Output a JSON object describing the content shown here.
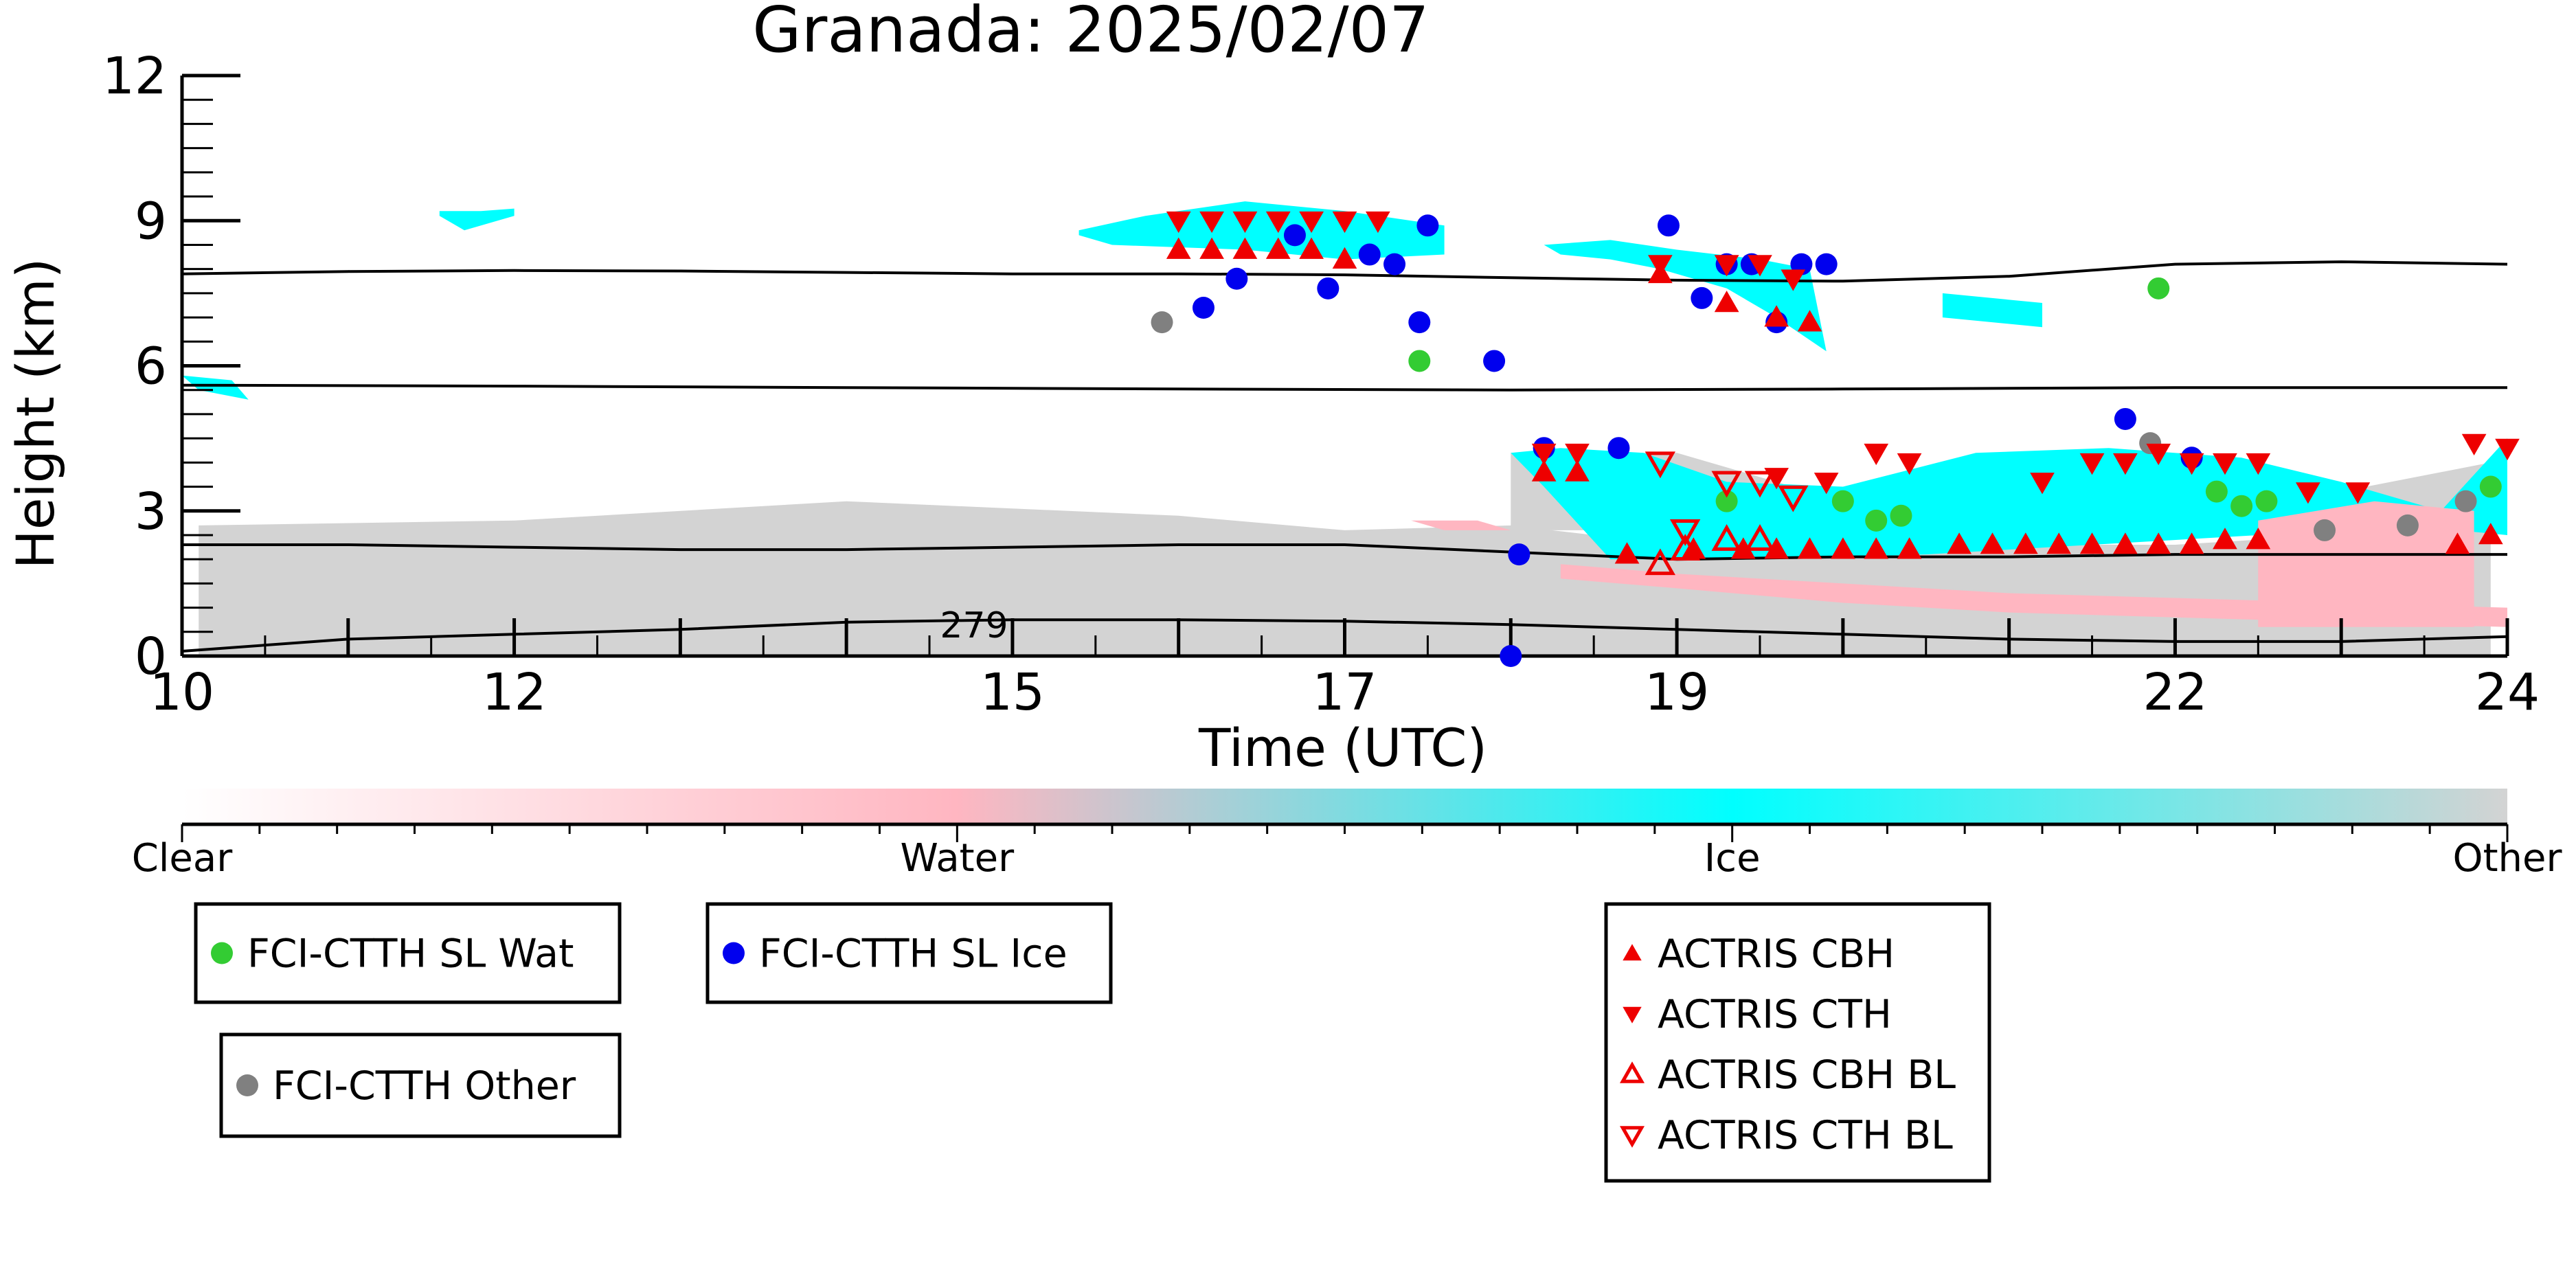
{
  "chart_data": {
    "type": "scatter",
    "title": "Granada: 2025/02/07",
    "xlabel": "Time (UTC)",
    "ylabel": "Height (km)",
    "xlim": [
      10,
      24
    ],
    "ylim": [
      0,
      12
    ],
    "xticks": [
      10,
      12,
      15,
      17,
      19,
      22,
      24
    ],
    "yticks": [
      0,
      3,
      6,
      9
    ],
    "ytick_top": 12,
    "colorbar": {
      "labels": [
        "Clear",
        "Water",
        "Ice",
        "Other"
      ],
      "colors": [
        "#ffffff",
        "#ffb6c1",
        "#00ffff",
        "#d3d3d3"
      ]
    },
    "contour_label": "279",
    "contour_lines": [
      {
        "x": [
          10,
          11,
          12,
          13,
          14,
          15,
          16,
          17,
          18,
          19,
          20,
          21,
          22,
          23,
          24
        ],
        "y": [
          7.9,
          7.95,
          7.97,
          7.96,
          7.93,
          7.9,
          7.9,
          7.88,
          7.82,
          7.77,
          7.75,
          7.85,
          8.1,
          8.15,
          8.1
        ]
      },
      {
        "x": [
          10,
          12,
          14,
          16,
          18,
          20,
          22,
          24
        ],
        "y": [
          5.6,
          5.58,
          5.55,
          5.52,
          5.5,
          5.52,
          5.55,
          5.55
        ]
      },
      {
        "x": [
          10,
          11,
          12,
          13,
          14,
          15,
          16,
          17,
          18,
          19,
          20,
          21,
          22,
          23,
          24
        ],
        "y": [
          2.3,
          2.3,
          2.25,
          2.2,
          2.2,
          2.25,
          2.3,
          2.3,
          2.15,
          2.0,
          2.05,
          2.05,
          2.1,
          2.1,
          2.1
        ]
      },
      {
        "x": [
          10,
          11,
          12,
          13,
          14,
          15,
          16,
          17,
          18,
          19,
          20,
          21,
          22,
          23,
          24
        ],
        "y": [
          0.1,
          0.35,
          0.45,
          0.55,
          0.7,
          0.75,
          0.75,
          0.72,
          0.65,
          0.55,
          0.45,
          0.35,
          0.3,
          0.3,
          0.4
        ]
      }
    ],
    "regions": [
      {
        "class": "Other",
        "color": "#d3d3d3",
        "x": [
          10.1,
          12,
          14,
          16,
          17,
          18,
          19,
          20,
          22,
          23.9,
          23.9,
          10.1
        ],
        "y": [
          2.7,
          2.8,
          3.2,
          2.9,
          2.6,
          2.7,
          2.3,
          2.3,
          2.3,
          2.7,
          0,
          0
        ]
      },
      {
        "class": "Other",
        "color": "#d3d3d3",
        "x": [
          18,
          19,
          20,
          21,
          23,
          23.9,
          23.9,
          18
        ],
        "y": [
          4.2,
          4.2,
          3.2,
          3.0,
          3.4,
          4.0,
          2.6,
          2.6
        ]
      },
      {
        "class": "Ice",
        "color": "#00ffff",
        "x": [
          15.4,
          15.8,
          16.4,
          17.0,
          17.6,
          17.6,
          17.0,
          16.4,
          15.6,
          15.4
        ],
        "y": [
          8.8,
          9.1,
          9.4,
          9.2,
          8.9,
          8.3,
          8.2,
          8.4,
          8.5,
          8.7
        ]
      },
      {
        "class": "Ice",
        "color": "#00ffff",
        "x": [
          18.2,
          18.6,
          19.0,
          19.5,
          19.8,
          19.9,
          19.6,
          19.3,
          18.9,
          18.6,
          18.3
        ],
        "y": [
          8.5,
          8.6,
          8.4,
          8.2,
          8.0,
          6.3,
          7.0,
          7.6,
          8.0,
          8.2,
          8.3
        ]
      },
      {
        "class": "Ice",
        "color": "#00ffff",
        "x": [
          18.0,
          18.3,
          18.8,
          19.3,
          20.0,
          20.8,
          21.6,
          22.4,
          23.0,
          23.6,
          24.0,
          24.0,
          23.4,
          22.5,
          21.5,
          20.5,
          19.5,
          18.6,
          18.2
        ],
        "y": [
          4.2,
          4.3,
          4.2,
          3.6,
          3.5,
          4.2,
          4.3,
          4.1,
          3.6,
          3.0,
          4.5,
          2.5,
          2.7,
          2.5,
          2.3,
          2.1,
          2.0,
          2.0,
          3.5
        ]
      },
      {
        "class": "Ice",
        "color": "#00ffff",
        "x": [
          10.0,
          10.3,
          10.4,
          10.1
        ],
        "y": [
          5.8,
          5.7,
          5.3,
          5.5
        ]
      },
      {
        "class": "Ice",
        "color": "#00ffff",
        "x": [
          11.55,
          11.8,
          12.0,
          12.0,
          11.7,
          11.55
        ],
        "y": [
          9.2,
          9.2,
          9.25,
          9.1,
          8.8,
          9.1
        ]
      },
      {
        "class": "Ice",
        "color": "#00ffff",
        "x": [
          20.6,
          21.2,
          21.2,
          20.6
        ],
        "y": [
          7.5,
          7.3,
          6.8,
          7.0
        ]
      },
      {
        "class": "Water",
        "color": "#ffb6c1",
        "x": [
          17.4,
          17.8,
          18.0,
          17.6
        ],
        "y": [
          2.8,
          2.8,
          2.6,
          2.6
        ]
      },
      {
        "class": "Water",
        "color": "#ffb6c1",
        "x": [
          18.3,
          19.0,
          20.0,
          21.0,
          22.0,
          23.0,
          24.0,
          24.0,
          23.0,
          22.0,
          21.0,
          20.0,
          19.0,
          18.3
        ],
        "y": [
          1.9,
          1.7,
          1.5,
          1.3,
          1.2,
          1.1,
          1.0,
          0.6,
          0.7,
          0.8,
          0.9,
          1.1,
          1.4,
          1.6
        ]
      },
      {
        "class": "Water",
        "color": "#ffb6c1",
        "x": [
          22.5,
          23.2,
          23.8,
          23.8,
          22.5
        ],
        "y": [
          2.8,
          3.2,
          3.0,
          0.6,
          0.6
        ]
      }
    ],
    "series": [
      {
        "name": "FCI-CTTH SL Wat",
        "marker": "circle",
        "color": "#33cc33",
        "x": [
          17.45,
          21.9,
          19.3,
          20.0,
          20.2,
          20.35,
          22.25,
          22.4,
          22.55,
          23.9
        ],
        "y": [
          6.1,
          7.6,
          3.2,
          3.2,
          2.8,
          2.9,
          3.4,
          3.1,
          3.2,
          3.5
        ]
      },
      {
        "name": "FCI-CTTH SL Ice",
        "marker": "circle",
        "color": "#0000ee",
        "x": [
          16.15,
          16.35,
          16.7,
          16.9,
          17.15,
          17.3,
          17.45,
          17.5,
          17.9,
          18.05,
          18.65,
          18.95,
          19.15,
          19.3,
          19.45,
          19.6,
          19.75,
          19.9,
          18.2,
          21.7,
          22.1,
          18.0
        ],
        "y": [
          7.2,
          7.8,
          8.7,
          7.6,
          8.3,
          8.1,
          6.9,
          8.9,
          6.1,
          2.1,
          4.3,
          8.9,
          7.4,
          8.1,
          8.1,
          6.9,
          8.1,
          8.1,
          4.3,
          4.9,
          4.1,
          0.0
        ]
      },
      {
        "name": "FCI-CTTH Other",
        "marker": "circle",
        "color": "#808080",
        "x": [
          15.9,
          21.85,
          22.9,
          23.4,
          23.75
        ],
        "y": [
          6.9,
          4.4,
          2.6,
          2.7,
          3.2
        ]
      },
      {
        "name": "ACTRIS CBH",
        "marker": "triangle-up",
        "color": "#ee0000",
        "x": [
          16.0,
          16.2,
          16.4,
          16.6,
          16.8,
          17.0,
          18.2,
          18.4,
          19.1,
          19.4,
          19.6,
          19.8,
          20.0,
          20.2,
          20.4,
          20.7,
          20.9,
          21.1,
          21.3,
          21.5,
          21.7,
          21.9,
          22.1,
          22.3,
          22.5,
          18.9,
          18.7,
          19.3,
          19.6,
          19.8,
          23.7,
          23.9
        ],
        "y": [
          8.4,
          8.4,
          8.4,
          8.4,
          8.4,
          8.2,
          3.8,
          3.8,
          2.2,
          2.2,
          2.2,
          2.2,
          2.2,
          2.2,
          2.2,
          2.3,
          2.3,
          2.3,
          2.3,
          2.3,
          2.3,
          2.3,
          2.3,
          2.4,
          2.4,
          7.9,
          2.1,
          7.3,
          7.0,
          6.9,
          2.3,
          2.5
        ]
      },
      {
        "name": "ACTRIS CTH",
        "marker": "triangle-down",
        "color": "#ee0000",
        "x": [
          16.0,
          16.2,
          16.4,
          16.6,
          16.8,
          17.0,
          17.2,
          18.2,
          18.4,
          18.9,
          19.3,
          19.5,
          19.7,
          19.9,
          20.2,
          20.4,
          21.2,
          21.5,
          21.7,
          21.9,
          22.1,
          22.3,
          22.5,
          22.8,
          23.1,
          23.8,
          24.0,
          19.6
        ],
        "y": [
          9.0,
          9.0,
          9.0,
          9.0,
          9.0,
          9.0,
          9.0,
          4.2,
          4.2,
          8.1,
          8.1,
          8.1,
          7.8,
          3.6,
          4.2,
          4.0,
          3.6,
          4.0,
          4.0,
          4.2,
          4.0,
          4.0,
          4.0,
          3.4,
          3.4,
          4.4,
          4.3,
          3.7
        ]
      },
      {
        "name": "ACTRIS CBH BL",
        "marker": "triangle-up-open",
        "color": "#ee0000",
        "x": [
          18.9,
          19.05,
          19.3,
          19.5
        ],
        "y": [
          1.9,
          2.2,
          2.4,
          2.4
        ]
      },
      {
        "name": "ACTRIS CTH BL",
        "marker": "triangle-down-open",
        "color": "#ee0000",
        "x": [
          18.9,
          19.05,
          19.3,
          19.5,
          19.7
        ],
        "y": [
          4.0,
          2.6,
          3.6,
          3.6,
          3.3
        ]
      }
    ],
    "legend_groups": [
      [
        "FCI-CTTH SL Wat"
      ],
      [
        "FCI-CTTH SL Ice"
      ],
      [
        "FCI-CTTH Other"
      ],
      [
        "ACTRIS CBH",
        "ACTRIS CTH",
        "ACTRIS CBH BL",
        "ACTRIS CTH BL"
      ]
    ]
  }
}
